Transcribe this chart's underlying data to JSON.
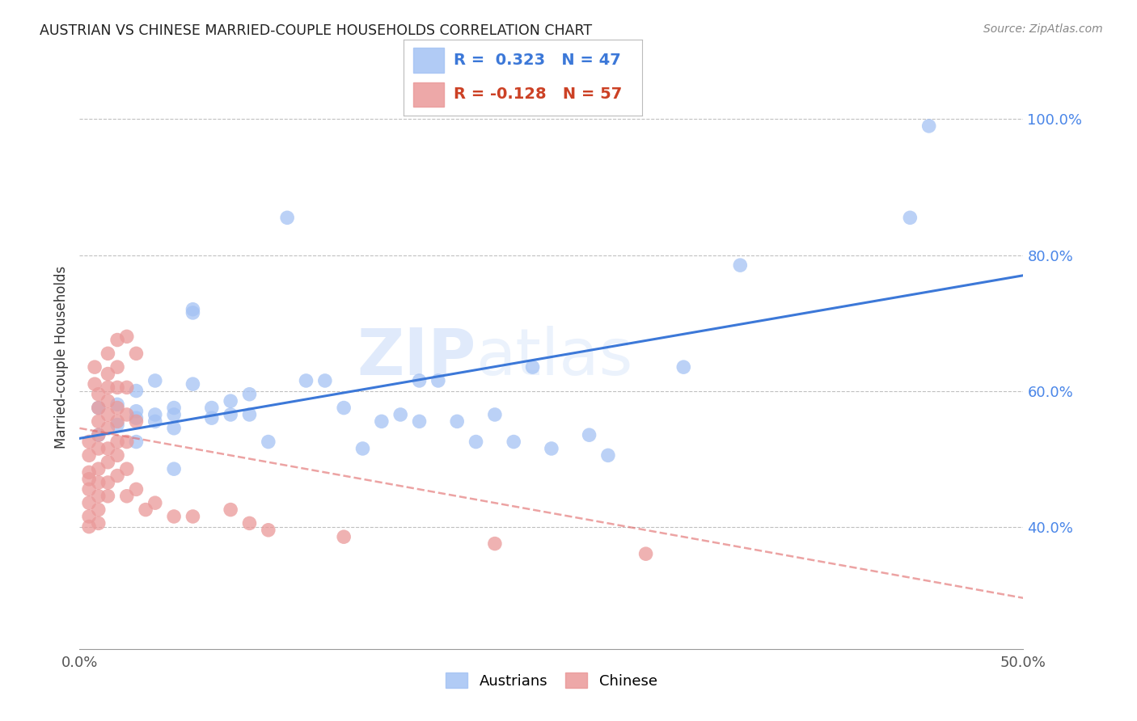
{
  "title": "AUSTRIAN VS CHINESE MARRIED-COUPLE HOUSEHOLDS CORRELATION CHART",
  "source": "Source: ZipAtlas.com",
  "ylabel": "Married-couple Households",
  "ytick_labels": [
    "100.0%",
    "80.0%",
    "60.0%",
    "40.0%"
  ],
  "ytick_values": [
    1.0,
    0.8,
    0.6,
    0.4
  ],
  "xrange": [
    0.0,
    0.5
  ],
  "yrange": [
    0.22,
    1.08
  ],
  "watermark_text": "ZIP",
  "watermark_text2": "atlas",
  "austrian_color": "#a4c2f4",
  "chinese_color": "#ea9999",
  "trendline_austrian_color": "#3c78d8",
  "trendline_chinese_color": "#e06666",
  "legend_r_austrians": "R =  0.323",
  "legend_n_austrians": "N = 47",
  "legend_r_chinese": "R = -0.128",
  "legend_n_chinese": "N = 57",
  "trendline_austrian": [
    [
      0.0,
      0.53
    ],
    [
      0.5,
      0.77
    ]
  ],
  "trendline_chinese": [
    [
      0.0,
      0.545
    ],
    [
      0.5,
      0.295
    ]
  ],
  "austrian_scatter": [
    [
      0.01,
      0.535
    ],
    [
      0.01,
      0.575
    ],
    [
      0.02,
      0.58
    ],
    [
      0.02,
      0.55
    ],
    [
      0.03,
      0.6
    ],
    [
      0.03,
      0.56
    ],
    [
      0.03,
      0.57
    ],
    [
      0.03,
      0.525
    ],
    [
      0.04,
      0.615
    ],
    [
      0.04,
      0.555
    ],
    [
      0.04,
      0.565
    ],
    [
      0.05,
      0.575
    ],
    [
      0.05,
      0.565
    ],
    [
      0.05,
      0.545
    ],
    [
      0.05,
      0.485
    ],
    [
      0.06,
      0.72
    ],
    [
      0.06,
      0.715
    ],
    [
      0.06,
      0.61
    ],
    [
      0.07,
      0.575
    ],
    [
      0.07,
      0.56
    ],
    [
      0.08,
      0.585
    ],
    [
      0.08,
      0.565
    ],
    [
      0.09,
      0.595
    ],
    [
      0.09,
      0.565
    ],
    [
      0.1,
      0.525
    ],
    [
      0.11,
      0.855
    ],
    [
      0.12,
      0.615
    ],
    [
      0.13,
      0.615
    ],
    [
      0.14,
      0.575
    ],
    [
      0.15,
      0.515
    ],
    [
      0.16,
      0.555
    ],
    [
      0.17,
      0.565
    ],
    [
      0.18,
      0.555
    ],
    [
      0.18,
      0.615
    ],
    [
      0.19,
      0.615
    ],
    [
      0.2,
      0.555
    ],
    [
      0.21,
      0.525
    ],
    [
      0.22,
      0.565
    ],
    [
      0.23,
      0.525
    ],
    [
      0.24,
      0.635
    ],
    [
      0.25,
      0.515
    ],
    [
      0.27,
      0.535
    ],
    [
      0.28,
      0.505
    ],
    [
      0.32,
      0.635
    ],
    [
      0.35,
      0.785
    ],
    [
      0.44,
      0.855
    ],
    [
      0.45,
      0.99
    ]
  ],
  "chinese_scatter": [
    [
      0.005,
      0.525
    ],
    [
      0.005,
      0.505
    ],
    [
      0.005,
      0.48
    ],
    [
      0.005,
      0.47
    ],
    [
      0.005,
      0.455
    ],
    [
      0.005,
      0.435
    ],
    [
      0.005,
      0.415
    ],
    [
      0.005,
      0.4
    ],
    [
      0.008,
      0.635
    ],
    [
      0.008,
      0.61
    ],
    [
      0.01,
      0.595
    ],
    [
      0.01,
      0.575
    ],
    [
      0.01,
      0.555
    ],
    [
      0.01,
      0.535
    ],
    [
      0.01,
      0.515
    ],
    [
      0.01,
      0.485
    ],
    [
      0.01,
      0.465
    ],
    [
      0.01,
      0.445
    ],
    [
      0.01,
      0.425
    ],
    [
      0.01,
      0.405
    ],
    [
      0.015,
      0.655
    ],
    [
      0.015,
      0.625
    ],
    [
      0.015,
      0.605
    ],
    [
      0.015,
      0.585
    ],
    [
      0.015,
      0.565
    ],
    [
      0.015,
      0.545
    ],
    [
      0.015,
      0.515
    ],
    [
      0.015,
      0.495
    ],
    [
      0.015,
      0.465
    ],
    [
      0.015,
      0.445
    ],
    [
      0.02,
      0.675
    ],
    [
      0.02,
      0.635
    ],
    [
      0.02,
      0.605
    ],
    [
      0.02,
      0.575
    ],
    [
      0.02,
      0.555
    ],
    [
      0.02,
      0.525
    ],
    [
      0.02,
      0.505
    ],
    [
      0.02,
      0.475
    ],
    [
      0.025,
      0.68
    ],
    [
      0.025,
      0.605
    ],
    [
      0.025,
      0.565
    ],
    [
      0.025,
      0.525
    ],
    [
      0.025,
      0.485
    ],
    [
      0.025,
      0.445
    ],
    [
      0.03,
      0.655
    ],
    [
      0.03,
      0.555
    ],
    [
      0.03,
      0.455
    ],
    [
      0.035,
      0.425
    ],
    [
      0.04,
      0.435
    ],
    [
      0.05,
      0.415
    ],
    [
      0.06,
      0.415
    ],
    [
      0.08,
      0.425
    ],
    [
      0.09,
      0.405
    ],
    [
      0.1,
      0.395
    ],
    [
      0.14,
      0.385
    ],
    [
      0.22,
      0.375
    ],
    [
      0.3,
      0.36
    ]
  ]
}
